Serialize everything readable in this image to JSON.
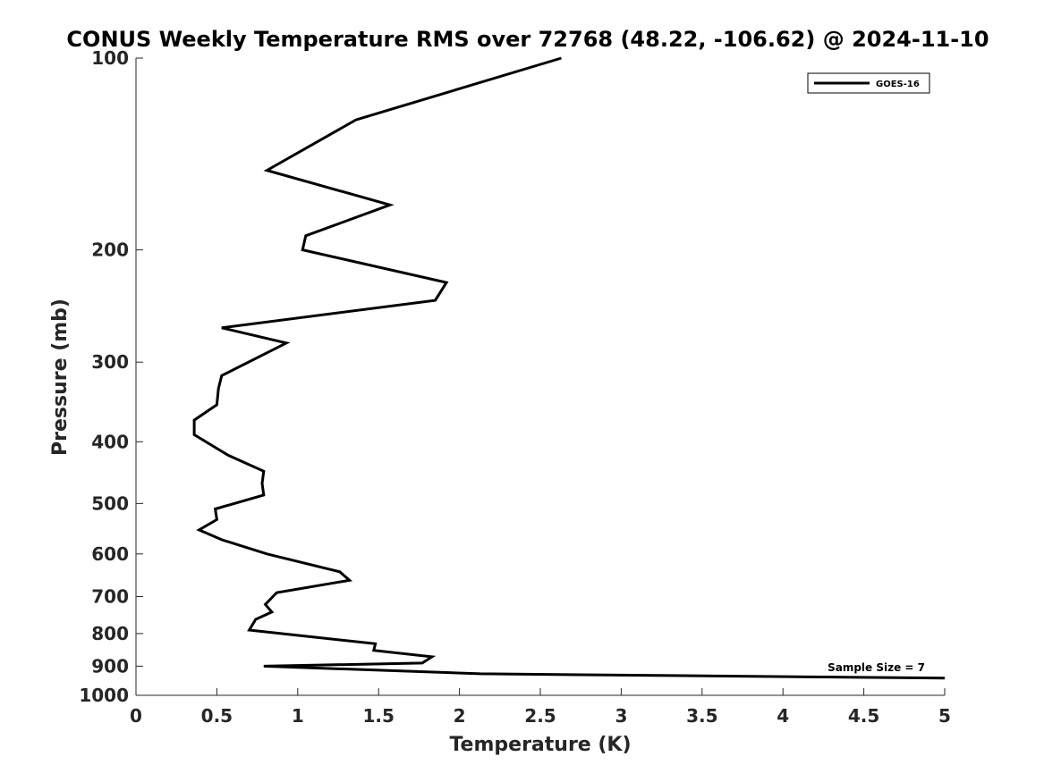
{
  "chart_data": {
    "type": "line",
    "title": "CONUS Weekly Temperature RMS over 72768 (48.22, -106.62) @ 2024-11-10",
    "xlabel": "Temperature (K)",
    "ylabel": "Pressure (mb)",
    "xlim": [
      0,
      5
    ],
    "ylim": [
      1000,
      100
    ],
    "y_scale": "log",
    "y_reversed": true,
    "x_ticks": [
      "0",
      "0.5",
      "1",
      "1.5",
      "2",
      "2.5",
      "3",
      "3.5",
      "4",
      "4.5",
      "5"
    ],
    "y_ticks": [
      "100",
      "200",
      "300",
      "400",
      "500",
      "600",
      "700",
      "800",
      "900",
      "1000"
    ],
    "grid": false,
    "legend_position": "top-right",
    "series": [
      {
        "name": "GOES-16",
        "color": "#000000",
        "x": [
          2.63,
          1.36,
          0.81,
          1.57,
          1.05,
          1.03,
          1.92,
          1.85,
          0.53,
          0.93,
          0.53,
          0.51,
          0.5,
          0.36,
          0.36,
          0.57,
          0.79,
          0.78,
          0.79,
          0.49,
          0.5,
          0.39,
          0.53,
          0.81,
          1.26,
          1.32,
          0.87,
          0.8,
          0.84,
          0.74,
          0.7,
          1.48,
          1.47,
          1.83,
          1.77,
          0.79,
          2.13,
          5.0
        ],
        "y": [
          100,
          125,
          150,
          170,
          190,
          200,
          225,
          240,
          265,
          280,
          315,
          330,
          350,
          370,
          390,
          420,
          445,
          465,
          485,
          510,
          530,
          550,
          570,
          600,
          640,
          660,
          690,
          720,
          740,
          760,
          790,
          830,
          850,
          870,
          890,
          900,
          925,
          940
        ]
      }
    ],
    "annotation": "Sample Size = 7"
  }
}
